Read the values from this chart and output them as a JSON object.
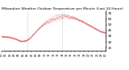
{
  "title": "Milwaukee Weather Outdoor Temperature per Minute (Last 24 Hours)",
  "bg_color": "#ffffff",
  "line_color": "#cc0000",
  "plot_bg": "#ffffff",
  "ylim": [
    5,
    75
  ],
  "yticks": [
    10,
    20,
    30,
    40,
    50,
    60,
    70
  ],
  "ytick_labels": [
    "10",
    "20",
    "30",
    "40",
    "50",
    "60",
    "70"
  ],
  "vline_positions": [
    6.0,
    14.0
  ],
  "n_points": 1440,
  "title_fontsize": 3.2,
  "tick_fontsize": 3.0,
  "marker_size": 0.4,
  "seed": 42
}
